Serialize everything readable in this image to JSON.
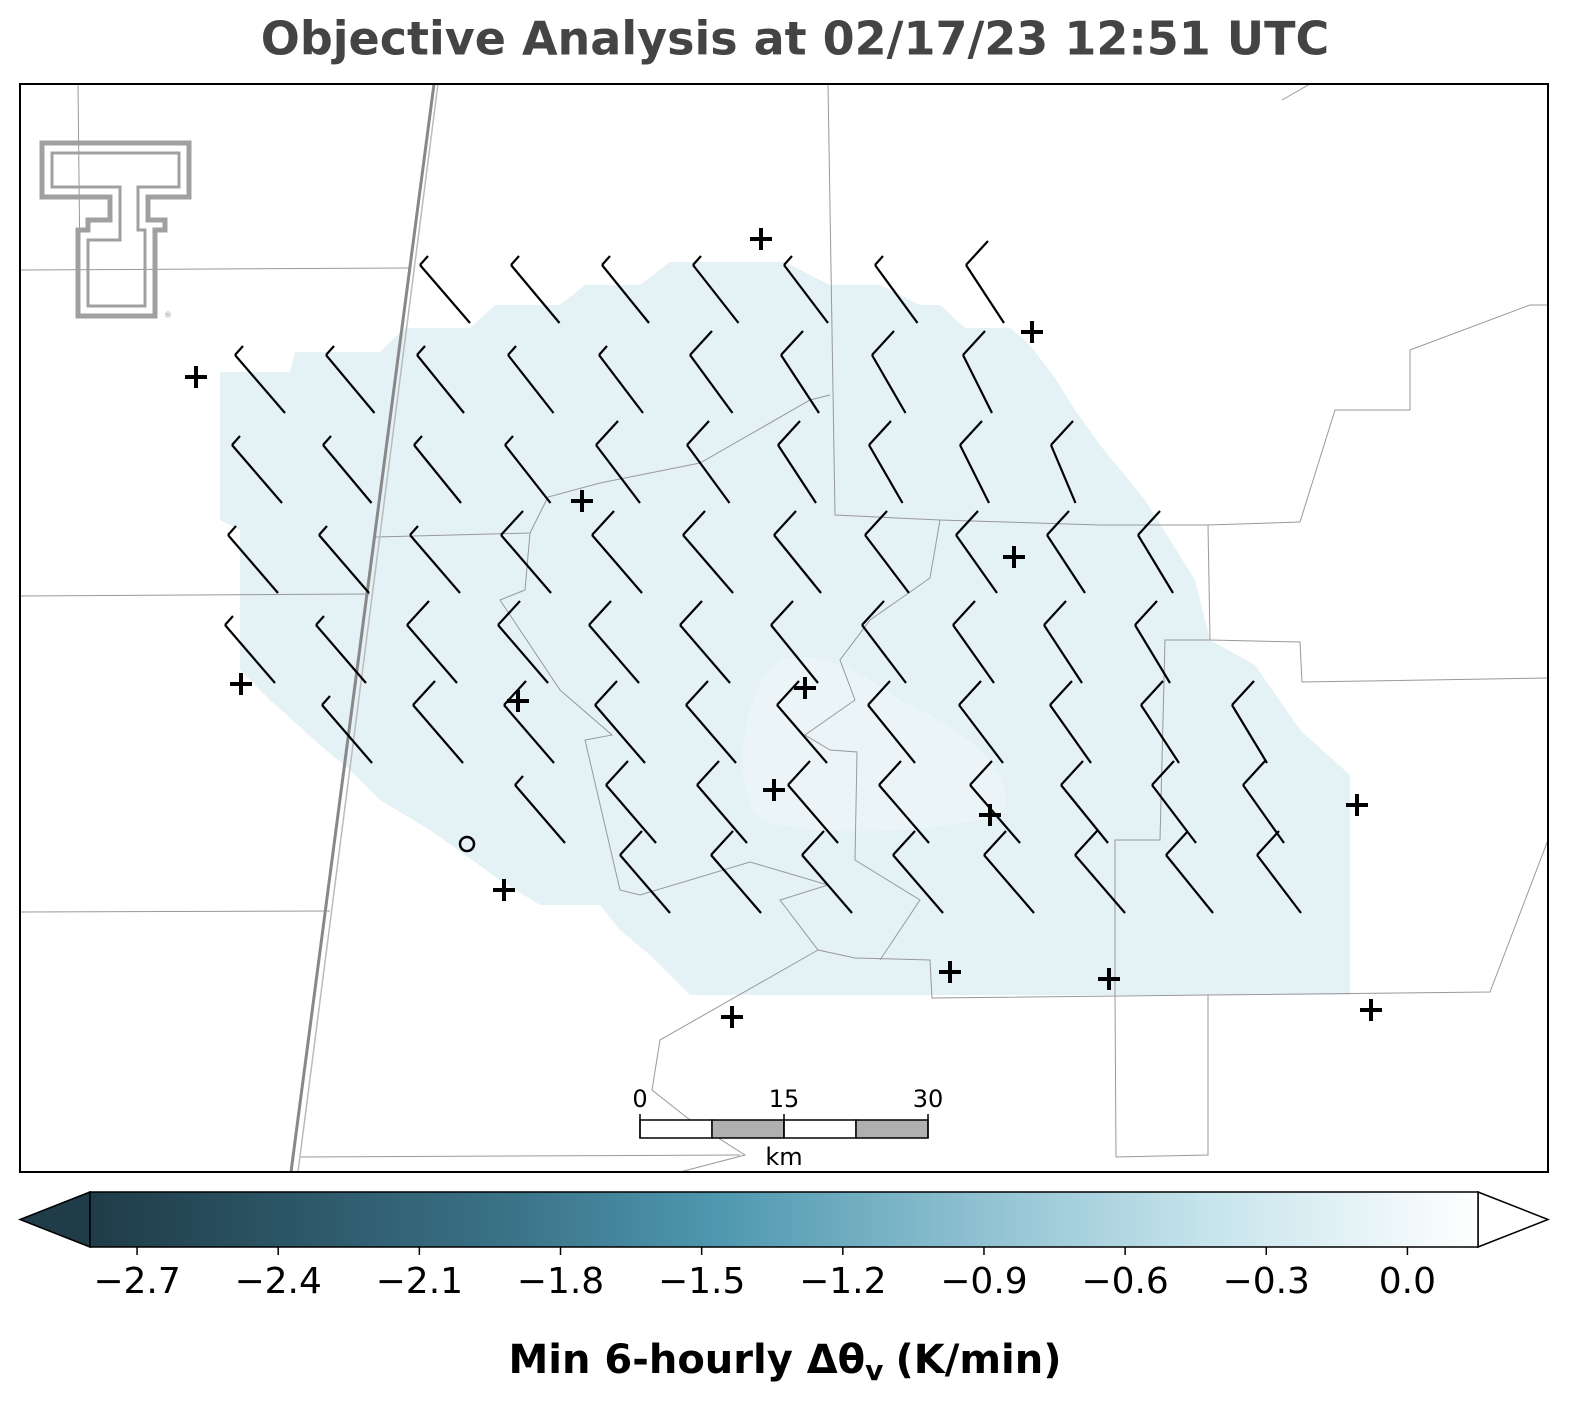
{
  "title": "Objective Analysis at 02/17/23 12:51 UTC",
  "colorbar": {
    "label": "Min 6-hourly Δθ",
    "label_subscript": "v",
    "label_units": "(K/min)",
    "lim": [
      -2.8,
      0.15
    ],
    "ticks": [
      {
        "value": -2.7,
        "label": "−2.7"
      },
      {
        "value": -2.4,
        "label": "−2.4"
      },
      {
        "value": -2.1,
        "label": "−2.1"
      },
      {
        "value": -1.8,
        "label": "−1.8"
      },
      {
        "value": -1.5,
        "label": "−1.5"
      },
      {
        "value": -1.2,
        "label": "−1.2"
      },
      {
        "value": -0.9,
        "label": "−0.9"
      },
      {
        "value": -0.6,
        "label": "−0.6"
      },
      {
        "value": -0.3,
        "label": "−0.3"
      },
      {
        "value": 0.0,
        "label": "0.0"
      }
    ]
  },
  "scale_bar": {
    "ticks": [
      0,
      15,
      30
    ],
    "unit": "km"
  }
}
